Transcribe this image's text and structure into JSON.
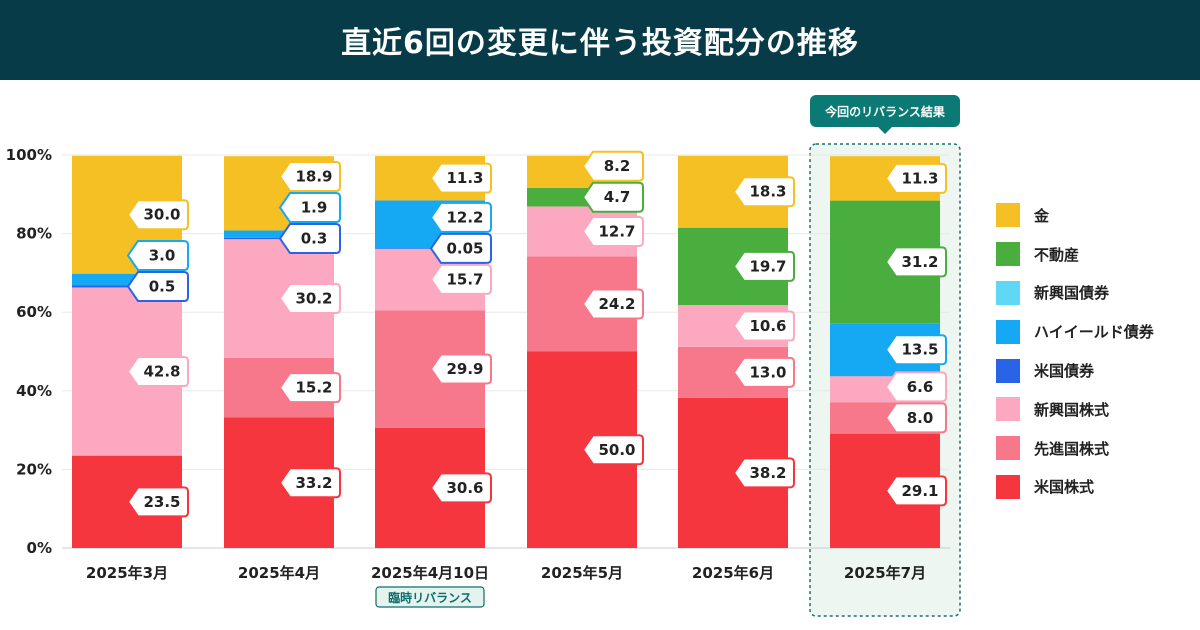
{
  "title": "直近6回の変更に伴う投資配分の推移",
  "highlight_tag": "今回のリバランス結果",
  "note_tag": "臨時リバランス",
  "chart_data": {
    "type": "bar",
    "stacked": true,
    "ylim": [
      0,
      100
    ],
    "yticks": [
      "0%",
      "20%",
      "40%",
      "60%",
      "80%",
      "100%"
    ],
    "categories": [
      "2025年3月",
      "2025年4月",
      "2025年4月10日",
      "2025年5月",
      "2025年6月",
      "2025年7月"
    ],
    "series": [
      {
        "name": "米国株式",
        "color": "#f5363f",
        "values": [
          23.5,
          33.2,
          30.6,
          50.0,
          38.2,
          29.1
        ],
        "labels": [
          "23.5",
          "33.2",
          "30.6",
          "50.0",
          "38.2",
          "29.1"
        ]
      },
      {
        "name": "先進国株式",
        "color": "#f7788a",
        "values": [
          0,
          15.2,
          29.9,
          24.2,
          13.0,
          8.0
        ],
        "labels": [
          "",
          "15.2",
          "29.9",
          "24.2",
          "13.0",
          "8.0"
        ]
      },
      {
        "name": "新興国株式",
        "color": "#fba8c0",
        "values": [
          42.8,
          30.2,
          15.7,
          12.7,
          10.6,
          6.6
        ],
        "labels": [
          "42.8",
          "30.2",
          "15.7",
          "12.7",
          "10.6",
          "6.6"
        ]
      },
      {
        "name": "米国債券",
        "color": "#2a64e6",
        "values": [
          0.5,
          0.3,
          0.05,
          0,
          0,
          0
        ],
        "labels": [
          "0.5",
          "0.3",
          "0.05",
          "",
          "",
          ""
        ]
      },
      {
        "name": "ハイイールド債券",
        "color": "#15a8f3",
        "values": [
          3.0,
          1.9,
          12.2,
          0,
          0,
          13.5
        ],
        "labels": [
          "3.0",
          "1.9",
          "12.2",
          "",
          "",
          "13.5"
        ]
      },
      {
        "name": "新興国債券",
        "color": "#5ed8f5",
        "values": [
          0,
          0,
          0,
          0,
          0,
          0
        ],
        "labels": [
          "",
          "",
          "",
          "",
          "",
          ""
        ]
      },
      {
        "name": "不動産",
        "color": "#4aae3f",
        "values": [
          0,
          0,
          0,
          4.7,
          19.7,
          31.2
        ],
        "labels": [
          "",
          "",
          "",
          "4.7",
          "19.7",
          "31.2"
        ]
      },
      {
        "name": "金",
        "color": "#f5c024",
        "values": [
          30.0,
          18.9,
          11.3,
          8.2,
          18.3,
          11.3
        ],
        "labels": [
          "30.0",
          "18.9",
          "11.3",
          "8.2",
          "18.3",
          "11.3"
        ]
      }
    ],
    "legend": [
      "金",
      "不動産",
      "新興国債券",
      "ハイイールド債券",
      "米国債券",
      "新興国株式",
      "先進国株式",
      "米国株式"
    ]
  }
}
